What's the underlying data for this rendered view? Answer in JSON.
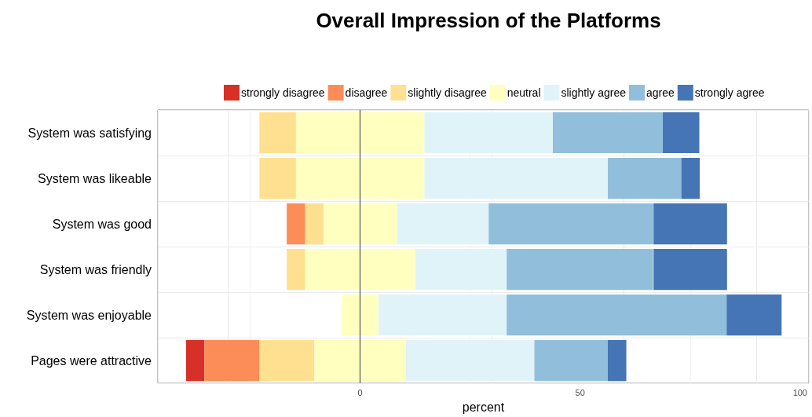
{
  "chart_data": {
    "type": "bar",
    "orientation": "horizontal",
    "title": "Overall Impression of the Platforms",
    "xlabel": "percent",
    "categories": [
      "System was satisfying",
      "System was likeable",
      "System was good",
      "System was friendly",
      "System was enjoyable",
      "Pages were attractive"
    ],
    "series": [
      {
        "name": "strongly disagree",
        "color": "#d73027",
        "values": [
          null,
          null,
          null,
          null,
          null,
          4.2
        ],
        "base": [
          null,
          null,
          null,
          null,
          null,
          -39.6
        ]
      },
      {
        "name": "disagree",
        "color": "#fc8d59",
        "values": [
          null,
          null,
          4.2,
          null,
          null,
          12.5
        ],
        "base": [
          null,
          null,
          -16.7,
          null,
          null,
          -35.4
        ]
      },
      {
        "name": "slightly disagree",
        "color": "#fee090",
        "values": [
          8.3,
          8.3,
          4.2,
          4.2,
          null,
          12.5
        ],
        "base": [
          -22.9,
          -22.9,
          -12.5,
          -16.7,
          null,
          -22.9
        ]
      },
      {
        "name": "neutral",
        "color": "#ffffbf",
        "values": [
          29.2,
          29.2,
          16.7,
          25,
          8.3,
          20.8
        ],
        "base": [
          -14.6,
          -14.6,
          -8.3,
          -12.5,
          -4.2,
          -10.4
        ]
      },
      {
        "name": "slightly agree",
        "color": "#e0f3f8",
        "values": [
          29.2,
          41.7,
          20.8,
          20.8,
          29.2,
          29.2
        ],
        "base": [
          14.6,
          14.6,
          8.4,
          12.5,
          4.2,
          10.4
        ]
      },
      {
        "name": "agree",
        "color": "#91bfdb",
        "values": [
          25,
          16.7,
          37.5,
          33.3,
          50,
          16.7
        ],
        "base": [
          43.8,
          56.3,
          29.2,
          33.3,
          33.3,
          39.6
        ]
      },
      {
        "name": "strongly agree",
        "color": "#4575b4",
        "values": [
          8.3,
          4.2,
          16.7,
          16.7,
          12.5,
          4.2
        ],
        "base": [
          68.8,
          73,
          66.7,
          66.7,
          83.3,
          56.3
        ]
      }
    ],
    "xlim": [
      -46,
      102
    ],
    "xticks": [
      0,
      50,
      100
    ],
    "grid": true,
    "legend": "top",
    "ref_lines": [
      {
        "axis": "x",
        "value": 0,
        "color": "#555555"
      }
    ]
  }
}
